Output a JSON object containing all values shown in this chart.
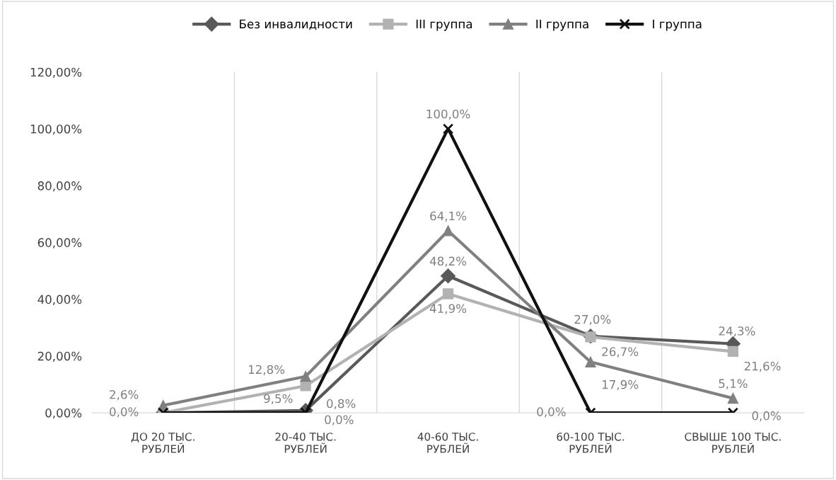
{
  "chart_data": {
    "type": "line",
    "categories": [
      "ДО 20 ТЫС.\nРУБЛЕЙ",
      "20-40 ТЫС.\nРУБЛЕЙ",
      "40-60 ТЫС.\nРУБЛЕЙ",
      "60-100 ТЫС.\nРУБЛЕЙ",
      "СВЫШЕ 100 ТЫС.\nРУБЛЕЙ"
    ],
    "series": [
      {
        "name": "Без инвалидности",
        "color": "#595959",
        "marker": "diamond",
        "values": [
          0.0,
          0.8,
          48.2,
          27.0,
          24.3
        ],
        "value_labels": [
          "0,0%",
          "0,8%",
          "48,2%",
          "27,0%",
          "24,3%"
        ]
      },
      {
        "name": "III группа",
        "color": "#b2b2b2",
        "marker": "square",
        "values": [
          0.0,
          9.5,
          41.9,
          26.7,
          21.6
        ],
        "value_labels": [
          null,
          "9,5%",
          "41,9%",
          "26,7%",
          "21,6%"
        ]
      },
      {
        "name": "II группа",
        "color": "#808080",
        "marker": "triangle",
        "values": [
          2.6,
          12.8,
          64.1,
          17.9,
          5.1
        ],
        "value_labels": [
          "2,6%",
          "12,8%",
          "64,1%",
          "17,9%",
          "5,1%"
        ]
      },
      {
        "name": "I группа",
        "color": "#111111",
        "marker": "cross",
        "values": [
          0.0,
          0.0,
          100.0,
          0.0,
          0.0
        ],
        "value_labels": [
          null,
          "0,0%",
          "100,0%",
          "0,0%",
          "0,0%"
        ]
      }
    ],
    "ylim": [
      0,
      120
    ],
    "yticks": [
      {
        "value": 0,
        "label": "0,00%"
      },
      {
        "value": 20,
        "label": "20,00%"
      },
      {
        "value": 40,
        "label": "40,00%"
      },
      {
        "value": 60,
        "label": "60,00%"
      },
      {
        "value": 80,
        "label": "80,00%"
      },
      {
        "value": 100,
        "label": "100,00%"
      },
      {
        "value": 120,
        "label": "120,00%"
      }
    ],
    "grid": "x",
    "legend": "top",
    "line_style": "solid"
  }
}
